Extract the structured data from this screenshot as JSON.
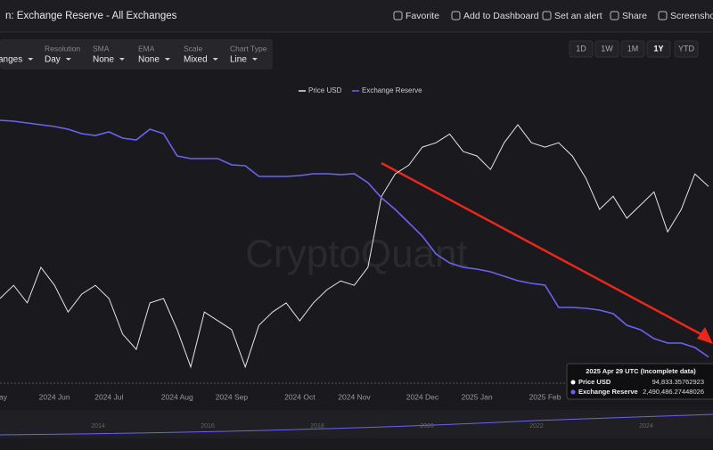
{
  "header": {
    "title": "n: Exchange Reserve - All Exchanges",
    "actions": [
      "Favorite",
      "Add to Dashboard",
      "Set an alert",
      "Share",
      "Screenshot"
    ]
  },
  "ranges": [
    "1D",
    "1W",
    "1M",
    "1Y",
    "YTD"
  ],
  "controls": [
    {
      "value": "anges"
    },
    {
      "label": "Resolution",
      "value": "Day"
    },
    {
      "label": "SMA",
      "value": "None"
    },
    {
      "label": "EMA",
      "value": "None"
    },
    {
      "label": "Scale",
      "value": "Mixed"
    },
    {
      "label": "Chart Type",
      "value": "Line"
    }
  ],
  "chart_data": {
    "type": "line",
    "watermark": "CryptoQuant",
    "categories": [
      "May",
      null,
      null,
      null,
      "2024 Jun",
      null,
      null,
      null,
      "2024 Jul",
      null,
      null,
      null,
      null,
      "2024 Aug",
      null,
      null,
      null,
      "2024 Sep",
      null,
      null,
      null,
      null,
      "2024 Oct",
      null,
      null,
      null,
      "2024 Nov",
      null,
      null,
      null,
      null,
      "2024 Dec",
      null,
      null,
      null,
      "2025 Jan",
      null,
      null,
      null,
      null,
      "2025 Feb",
      null,
      null,
      null,
      null,
      null,
      null,
      null,
      null,
      null,
      null,
      null,
      null
    ],
    "ylim": [
      50000,
      115000
    ],
    "y2lim": [
      2440000,
      2990000
    ],
    "series": [
      {
        "name": "Price USD",
        "color": "#e6e6e6",
        "values": [
          69300,
          72300,
          68300,
          76400,
          72300,
          66200,
          70300,
          72300,
          69300,
          61200,
          57700,
          68300,
          69300,
          62200,
          53700,
          66200,
          64200,
          62200,
          53700,
          63200,
          66200,
          68300,
          64200,
          68300,
          71300,
          73300,
          72300,
          76400,
          92600,
          97700,
          99700,
          103800,
          104800,
          106800,
          102800,
          101800,
          98700,
          104800,
          108900,
          104800,
          103800,
          104800,
          101800,
          96700,
          89600,
          92600,
          87600,
          90600,
          93600,
          84500,
          89600,
          97700,
          94833.35762923
        ]
      },
      {
        "name": "Exchange Reserve",
        "color": "#6b63f0",
        "axis": "y2",
        "values": [
          2947000,
          2945300,
          2941900,
          2938400,
          2935000,
          2929800,
          2921300,
          2917800,
          2924700,
          2912700,
          2909200,
          2929800,
          2921300,
          2878300,
          2873100,
          2873100,
          2873100,
          2861100,
          2859400,
          2838800,
          2838800,
          2838800,
          2840500,
          2843900,
          2843900,
          2842200,
          2843900,
          2826700,
          2797500,
          2775200,
          2749400,
          2723600,
          2689200,
          2672000,
          2663400,
          2660000,
          2654800,
          2646300,
          2637700,
          2632500,
          2629100,
          2586100,
          2586100,
          2584400,
          2580900,
          2574100,
          2551700,
          2543100,
          2525900,
          2517300,
          2517300,
          2508800,
          2490486.27448026
        ]
      }
    ],
    "tooltip": {
      "title": "2025 Apr 29 UTC (Incomplete data)",
      "values": [
        "94,833.35762923",
        "2,490,486.27448026"
      ]
    }
  },
  "navigator": {
    "labels": [
      "2014",
      "2016",
      "2018",
      "2020",
      "2022",
      "2024"
    ]
  }
}
